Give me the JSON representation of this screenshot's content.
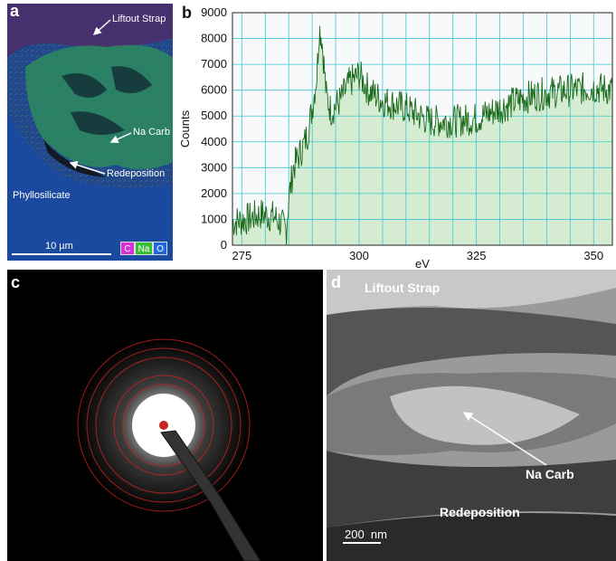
{
  "panel_a": {
    "label": "a",
    "annotations": {
      "liftout_strap": "Liftout Strap",
      "na_carb": "Na Carb",
      "redeposition": "Redeposition",
      "phyllosilicate": "Phyllosilicate"
    },
    "scale_bar": "10 µm",
    "legend": [
      {
        "text": "C",
        "color": "#d633d6"
      },
      {
        "text": "Na",
        "color": "#37c037"
      },
      {
        "text": "O",
        "color": "#2266dd"
      }
    ]
  },
  "panel_b": {
    "label": "b"
  },
  "panel_c": {
    "label": "c"
  },
  "panel_d": {
    "label": "d",
    "annotations": {
      "liftout_strap": "Liftout Strap",
      "na_carb": "Na Carb",
      "redeposition": "Redeposition"
    },
    "scale_bar": "200  nm"
  },
  "chart_data": {
    "type": "area",
    "xlabel": "eV",
    "ylabel": "Counts",
    "xlim": [
      273,
      354
    ],
    "ylim": [
      0,
      9000
    ],
    "x_ticks": [
      275,
      300,
      325,
      350
    ],
    "y_ticks": [
      0,
      1000,
      2000,
      3000,
      4000,
      5000,
      6000,
      7000,
      8000,
      9000
    ],
    "grid": true,
    "line_color": "#1a6a1a",
    "fill_color": "#d6ecd2",
    "series": [
      {
        "x": [
          273,
          276,
          279,
          282,
          284.5,
          285,
          286,
          287,
          288,
          289,
          290,
          291,
          291.5,
          292,
          292.5,
          293,
          294,
          296,
          298,
          300,
          302,
          305,
          310,
          315,
          320,
          325,
          330,
          335,
          340,
          345,
          350,
          354
        ],
        "values": [
          900,
          1000,
          1200,
          1100,
          600,
          1800,
          3000,
          3400,
          3800,
          4300,
          5300,
          6600,
          8400,
          8100,
          7000,
          5800,
          5200,
          5600,
          6300,
          6600,
          6000,
          5600,
          5300,
          4800,
          4800,
          4900,
          5300,
          5700,
          5900,
          6000,
          6100,
          6000
        ]
      }
    ]
  }
}
